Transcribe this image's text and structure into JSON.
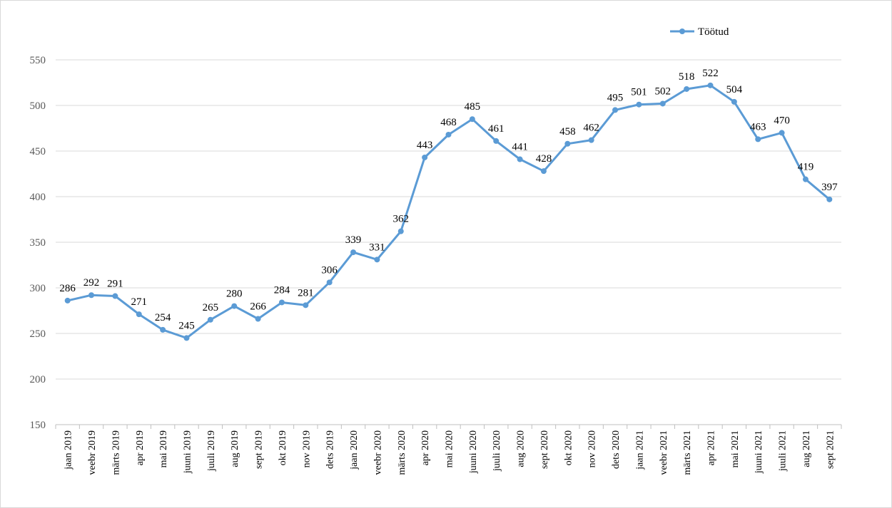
{
  "chart_data": {
    "type": "line",
    "title": "",
    "xlabel": "",
    "ylabel": "",
    "ylim": [
      150,
      550
    ],
    "yticks": [
      150,
      200,
      250,
      300,
      350,
      400,
      450,
      500,
      550
    ],
    "grid": true,
    "legend": "top-right",
    "categories": [
      "jaan 2019",
      "veebr 2019",
      "märts 2019",
      "apr 2019",
      "mai 2019",
      "juuni 2019",
      "juuli 2019",
      "aug 2019",
      "sept 2019",
      "okt 2019",
      "nov 2019",
      "dets 2019",
      "jaan 2020",
      "veebr 2020",
      "märts 2020",
      "apr 2020",
      "mai 2020",
      "juuni 2020",
      "juuli 2020",
      "aug 2020",
      "sept 2020",
      "okt 2020",
      "nov 2020",
      "dets 2020",
      "jaan 2021",
      "veebr 2021",
      "märts 2021",
      "apr 2021",
      "mai 2021",
      "juuni 2021",
      "juuli 2021",
      "aug 2021",
      "sept 2021"
    ],
    "series": [
      {
        "name": "Töötud",
        "color": "#5b9bd5",
        "values": [
          286,
          292,
          291,
          271,
          254,
          245,
          265,
          280,
          266,
          284,
          281,
          306,
          339,
          331,
          362,
          443,
          468,
          485,
          461,
          441,
          428,
          458,
          462,
          495,
          501,
          502,
          518,
          522,
          504,
          463,
          470,
          419,
          397
        ]
      }
    ]
  }
}
